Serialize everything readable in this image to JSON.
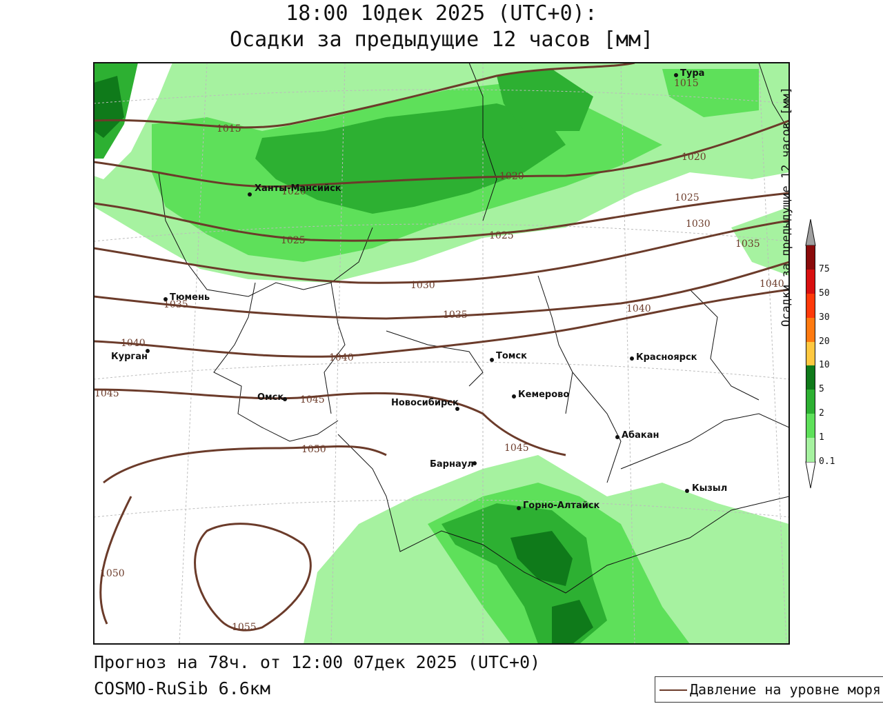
{
  "title_line1": "18:00 10дек 2025 (UTC+0):",
  "title_line2": "Осадки за предыдущие 12 часов [мм]",
  "footer_line1": "Прогноз на 78ч. от 12:00 07дек 2025 (UTC+0)",
  "footer_line2": "COSMO-RuSib 6.6км",
  "legend_line_label": "Давление на уровне моря",
  "colorbar": {
    "title": "Осадки за предыдущие 12 часов [мм]",
    "levels": [
      {
        "label": "0.1",
        "color": "#a6f2a0"
      },
      {
        "label": "1",
        "color": "#5ee05a"
      },
      {
        "label": "2",
        "color": "#2db032"
      },
      {
        "label": "5",
        "color": "#0f7a1a"
      },
      {
        "label": "10",
        "color": "#ffc840"
      },
      {
        "label": "20",
        "color": "#ff7a10"
      },
      {
        "label": "30",
        "color": "#ff3a0a"
      },
      {
        "label": "50",
        "color": "#d81010"
      },
      {
        "label": "75",
        "color": "#8a0a0a"
      }
    ],
    "over_color": "#a0a0a0"
  },
  "cities": [
    {
      "name": "Тура"
    },
    {
      "name": "Ханты-Мансийск"
    },
    {
      "name": "Тюмень"
    },
    {
      "name": "Курган"
    },
    {
      "name": "Омск"
    },
    {
      "name": "Томск"
    },
    {
      "name": "Красноярск"
    },
    {
      "name": "Кемерово"
    },
    {
      "name": "Новосибирск"
    },
    {
      "name": "Абакан"
    },
    {
      "name": "Барнаул"
    },
    {
      "name": "Горно-Алтайск"
    },
    {
      "name": "Кызыл"
    }
  ],
  "isobars": [
    "1015",
    "1020",
    "1025",
    "1030",
    "1035",
    "1040",
    "1045",
    "1050",
    "1055"
  ],
  "colors": {
    "isobar": "#6b3b2a",
    "border": "#111111",
    "grid": "#bbbbbb"
  }
}
